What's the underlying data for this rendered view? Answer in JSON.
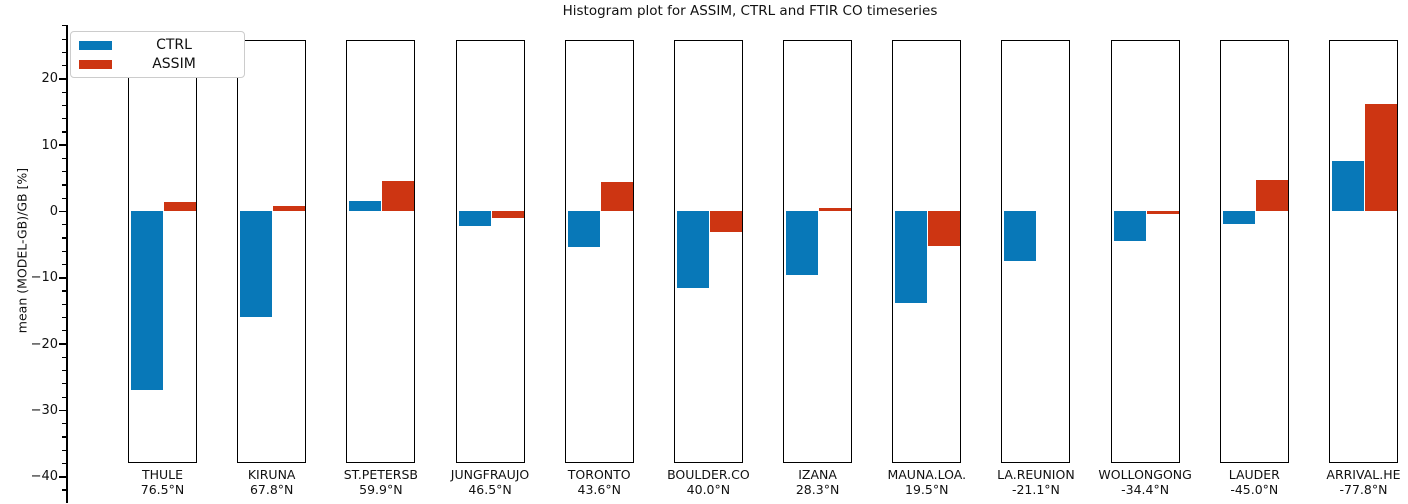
{
  "chart_data": {
    "type": "bar",
    "title": "Histogram plot for ASSIM, CTRL and FTIR CO timeseries",
    "ylabel": "mean (MODEL-GB)/GB [%]",
    "ylim": [
      -40,
      26
    ],
    "yticks": [
      20,
      10,
      0,
      -10,
      -20,
      -30,
      -40
    ],
    "ytick_labels": [
      "20",
      "10",
      "0",
      "−10",
      "−20",
      "−30",
      "−40"
    ],
    "minor_tick_step": 2,
    "grid": false,
    "legend_position": "upper left",
    "categories": [
      "THULE",
      "KIRUNA",
      "ST.PETERSB",
      "JUNGFRAUJO",
      "TORONTO",
      "BOULDER.CO",
      "IZANA",
      "MAUNA.LOA.",
      "LA.REUNION",
      "WOLLONGONG",
      "LAUDER",
      "ARRIVAL.HE"
    ],
    "category_sublabels": [
      "76.5°N",
      "67.8°N",
      "59.9°N",
      "46.5°N",
      "43.6°N",
      "40.0°N",
      "28.3°N",
      "19.5°N",
      "-21.1°N",
      "-34.4°N",
      "-45.0°N",
      "-77.8°N"
    ],
    "series": [
      {
        "name": "CTRL",
        "color": "#0878b8",
        "values": [
          -27.0,
          -16.0,
          1.5,
          -2.2,
          -5.4,
          -11.6,
          -9.7,
          -13.9,
          -7.5,
          -4.5,
          -2.0,
          7.5
        ]
      },
      {
        "name": "ASSIM",
        "color": "#cd3512",
        "values": [
          1.4,
          0.8,
          4.5,
          -1.0,
          4.4,
          -3.1,
          0.4,
          -5.3,
          0.0,
          -0.4,
          4.7,
          16.1
        ]
      }
    ],
    "colors": {
      "ctrl": "#0878b8",
      "assim": "#cd3512",
      "axis": "#000000",
      "legend_border": "#cccccc"
    }
  }
}
